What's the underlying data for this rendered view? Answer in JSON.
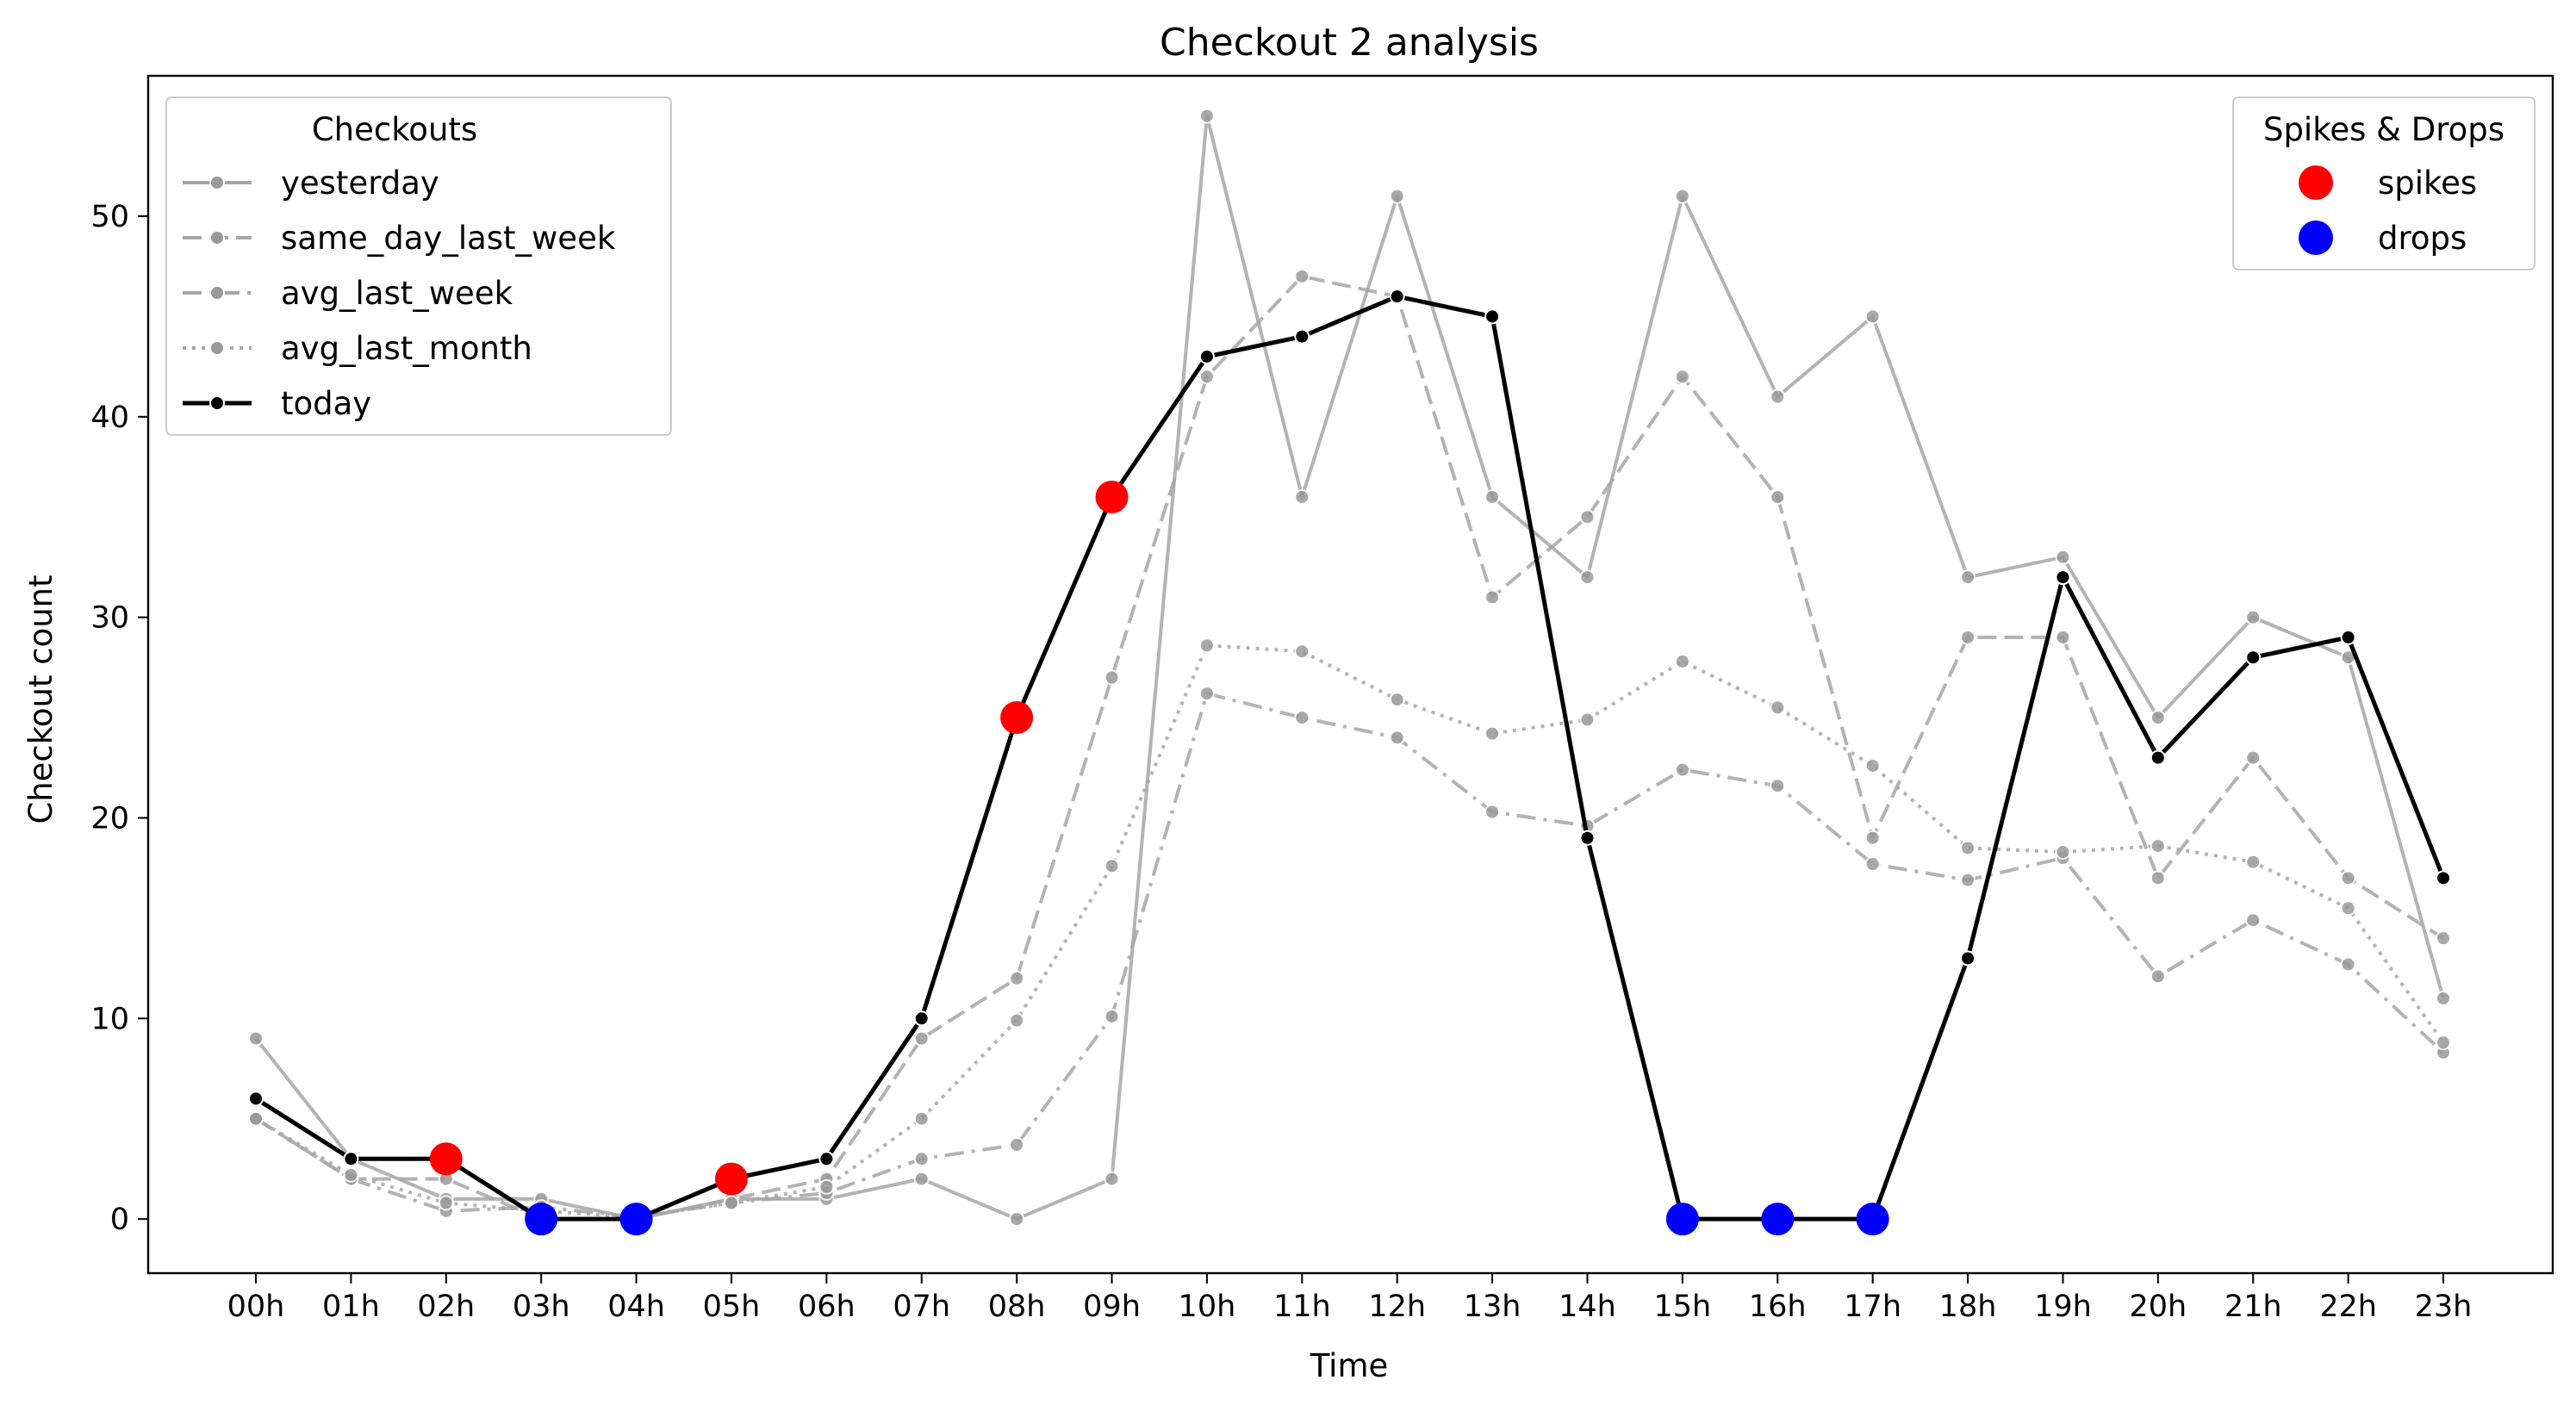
{
  "chart_data": {
    "type": "line",
    "title": "Checkout 2 analysis",
    "xlabel": "Time",
    "ylabel": "Checkout count",
    "ylim": [
      -2.7,
      57
    ],
    "yticks": [
      0,
      10,
      20,
      30,
      40,
      50
    ],
    "grid": false,
    "categories": [
      "00h",
      "01h",
      "02h",
      "03h",
      "04h",
      "05h",
      "06h",
      "07h",
      "08h",
      "09h",
      "10h",
      "11h",
      "12h",
      "13h",
      "14h",
      "15h",
      "16h",
      "17h",
      "18h",
      "19h",
      "20h",
      "21h",
      "22h",
      "23h"
    ],
    "series": [
      {
        "name": "yesterday",
        "style": "solid",
        "color": "#a6a6a6",
        "values": [
          9,
          3,
          1,
          1,
          0,
          1,
          1,
          2,
          0,
          2,
          55,
          36,
          51,
          36,
          32,
          51,
          41,
          45,
          32,
          33,
          25,
          30,
          28,
          11
        ]
      },
      {
        "name": "same_day_last_week",
        "style": "dashed",
        "color": "#a6a6a6",
        "values": [
          5,
          2,
          2,
          0,
          0,
          1,
          2,
          9,
          12,
          27,
          42,
          47,
          46,
          31,
          35,
          42,
          36,
          19,
          29,
          29,
          17,
          23,
          17,
          14
        ]
      },
      {
        "name": "avg_last_week",
        "style": "dashdot",
        "color": "#a6a6a6",
        "values": [
          5,
          2,
          0.4,
          0.6,
          0.1,
          0.8,
          1.3,
          3,
          3.7,
          10.1,
          26.2,
          25,
          24,
          20.3,
          19.6,
          22.4,
          21.6,
          17.7,
          16.9,
          18,
          12.1,
          14.9,
          12.7,
          8.3
        ]
      },
      {
        "name": "avg_last_month",
        "style": "dotted",
        "color": "#a6a6a6",
        "values": [
          5,
          2.2,
          0.8,
          0.4,
          0.1,
          0.8,
          1.6,
          5,
          9.9,
          17.6,
          28.6,
          28.3,
          25.9,
          24.2,
          24.9,
          27.8,
          25.5,
          22.6,
          18.5,
          18.3,
          18.6,
          17.8,
          15.5,
          8.8
        ]
      },
      {
        "name": "today",
        "style": "solid",
        "color": "#000000",
        "values": [
          6,
          3,
          3,
          0,
          0,
          2,
          3,
          10,
          25,
          36,
          43,
          44,
          46,
          45,
          19,
          0,
          0,
          0,
          13,
          32,
          23,
          28,
          29,
          17
        ]
      }
    ],
    "markers": [
      {
        "name": "spikes",
        "color": "#ff0000",
        "points": [
          {
            "x": "02h",
            "y": 3
          },
          {
            "x": "05h",
            "y": 2
          },
          {
            "x": "08h",
            "y": 25
          },
          {
            "x": "09h",
            "y": 36
          }
        ]
      },
      {
        "name": "drops",
        "color": "#0000ff",
        "points": [
          {
            "x": "03h",
            "y": 0
          },
          {
            "x": "04h",
            "y": 0
          },
          {
            "x": "15h",
            "y": 0
          },
          {
            "x": "16h",
            "y": 0
          },
          {
            "x": "17h",
            "y": 0
          }
        ]
      }
    ],
    "legends": [
      {
        "title": "Checkouts",
        "placement": "upper-left",
        "entries": [
          "yesterday",
          "same_day_last_week",
          "avg_last_week",
          "avg_last_month",
          "today"
        ]
      },
      {
        "title": "Spikes & Drops",
        "placement": "upper-right",
        "entries": [
          "spikes",
          "drops"
        ]
      }
    ]
  }
}
